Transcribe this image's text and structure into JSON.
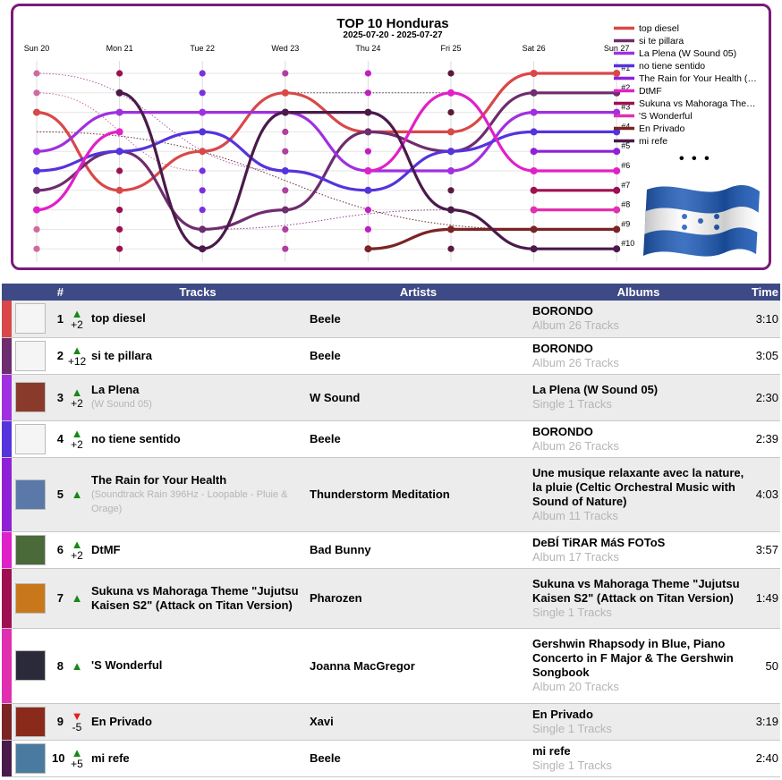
{
  "chart_data": {
    "type": "line",
    "title": "TOP 10 Honduras",
    "subtitle": "2025-07-20 - 2025-07-27",
    "x": [
      "Sun 20",
      "Mon 21",
      "Tue 22",
      "Wed 23",
      "Thu 24",
      "Fri 25",
      "Sat 26",
      "Sun 27"
    ],
    "rank_labels": [
      "#1",
      "#2",
      "#3",
      "#4",
      "#5",
      "#6",
      "#7",
      "#8",
      "#9",
      "#10"
    ],
    "ylim": [
      1,
      10
    ],
    "y_inverted": true,
    "legend_position": "right",
    "legend_more": "• • •",
    "series": [
      {
        "name": "top diesel",
        "color": "#d94848",
        "values": [
          3,
          7,
          5,
          2,
          4,
          4,
          1,
          1
        ]
      },
      {
        "name": "si te pillara",
        "color": "#6e2d6e",
        "values": [
          7,
          5,
          9,
          8,
          4,
          5,
          2,
          2
        ]
      },
      {
        "name": "La Plena (W Sound 05)",
        "color": "#a030e0",
        "values": [
          5,
          3,
          3,
          3,
          6,
          6,
          3,
          3
        ]
      },
      {
        "name": "no tiene sentido",
        "color": "#5533dd",
        "values": [
          6,
          5,
          4,
          6,
          7,
          5,
          4,
          4
        ]
      },
      {
        "name": "The Rain for Your Health (Soundtrack Rain 396Hz - Loopable - Pluie & Orage)",
        "color": "#9020d8",
        "values": [
          null,
          null,
          null,
          null,
          null,
          null,
          5,
          5
        ]
      },
      {
        "name": "DtMF",
        "color": "#e020c8",
        "values": [
          8,
          4,
          null,
          null,
          6,
          2,
          6,
          6
        ]
      },
      {
        "name": "Sukuna vs Mahoraga Theme \"Jujutsu Kaisen S2\" (Attack on Titan Version)",
        "color": "#9e1050",
        "values": [
          null,
          null,
          null,
          null,
          null,
          null,
          7,
          7
        ]
      },
      {
        "name": "'S Wonderful",
        "color": "#e030b0",
        "values": [
          null,
          null,
          null,
          null,
          null,
          null,
          8,
          8
        ]
      },
      {
        "name": "En Privado",
        "color": "#7a2424",
        "values": [
          null,
          null,
          null,
          null,
          10,
          9,
          9,
          9
        ]
      },
      {
        "name": "mi refe",
        "color": "#4a1a4a",
        "values": [
          null,
          2,
          10,
          3,
          3,
          8,
          10,
          10
        ]
      }
    ],
    "dotted_links": [
      {
        "color": "#b05ab0",
        "from": [
          0,
          1
        ],
        "to": [
          3,
          6
        ]
      },
      {
        "color": "#d06aa0",
        "from": [
          0,
          2
        ],
        "to": [
          2,
          6
        ]
      },
      {
        "color": "#6a2a2a",
        "from": [
          0,
          4
        ],
        "to": [
          6,
          9
        ]
      },
      {
        "color": "#904090",
        "from": [
          2,
          9
        ],
        "to": [
          5,
          8
        ]
      },
      {
        "color": "#5a3a5a",
        "from": [
          3,
          2
        ],
        "to": [
          5,
          2
        ]
      }
    ],
    "empty_dots": [
      {
        "day": 0,
        "color": "#d06aa0",
        "ranks": [
          1,
          2,
          9,
          10
        ]
      },
      {
        "day": 1,
        "color": "#9e1050",
        "ranks": [
          1,
          6,
          7,
          8,
          9,
          10
        ]
      },
      {
        "day": 2,
        "color": "#7a30e0",
        "ranks": [
          1,
          2,
          6,
          7,
          8
        ]
      },
      {
        "day": 3,
        "color": "#b040a0",
        "ranks": [
          1,
          4,
          5,
          7,
          9,
          10
        ]
      },
      {
        "day": 4,
        "color": "#c020c0",
        "ranks": [
          1,
          2,
          5,
          8,
          9
        ]
      },
      {
        "day": 5,
        "color": "#5a1a3a",
        "ranks": [
          1,
          3,
          7,
          10
        ]
      }
    ]
  },
  "table": {
    "headers": {
      "rank": "#",
      "tracks": "Tracks",
      "artists": "Artists",
      "albums": "Albums",
      "time": "Time"
    },
    "rows": [
      {
        "rank": "1",
        "trend": "up",
        "change": "+2",
        "title": "top diesel",
        "subtitle": "",
        "artist": "Beele",
        "album": "BORONDO",
        "album_info": "Album 26 Tracks",
        "time": "3:10",
        "color": "#d94848",
        "cover": "#f5f5f5"
      },
      {
        "rank": "2",
        "trend": "up",
        "change": "+12",
        "title": "si te pillara",
        "subtitle": "",
        "artist": "Beele",
        "album": "BORONDO",
        "album_info": "Album 26 Tracks",
        "time": "3:05",
        "color": "#6e2d6e",
        "cover": "#f5f5f5"
      },
      {
        "rank": "3",
        "trend": "up",
        "change": "+2",
        "title": "La Plena",
        "subtitle": "(W Sound 05)",
        "artist": "W Sound",
        "album": "La Plena (W Sound 05)",
        "album_info": "Single 1 Tracks",
        "time": "2:30",
        "color": "#a030e0",
        "cover": "#8a3a2a"
      },
      {
        "rank": "4",
        "trend": "up",
        "change": "+2",
        "title": "no tiene sentido",
        "subtitle": "",
        "artist": "Beele",
        "album": "BORONDO",
        "album_info": "Album 26 Tracks",
        "time": "2:39",
        "color": "#5533dd",
        "cover": "#f5f5f5"
      },
      {
        "rank": "5",
        "trend": "up",
        "change": "",
        "title": "The Rain for Your Health",
        "subtitle": "(Soundtrack Rain 396Hz - Loopable - Pluie & Orage)",
        "artist": "Thunderstorm Meditation",
        "album": "Une musique relaxante avec la nature, la pluie (Celtic Orchestral Music with Sound of Nature)",
        "album_info": "Album 11 Tracks",
        "time": "4:03",
        "color": "#9020d8",
        "cover": "#5a78a8"
      },
      {
        "rank": "6",
        "trend": "up",
        "change": "+2",
        "title": "DtMF",
        "subtitle": "",
        "artist": "Bad Bunny",
        "album": "DeBÍ TiRAR MáS FOToS",
        "album_info": "Album 17 Tracks",
        "time": "3:57",
        "color": "#e020c8",
        "cover": "#4a6a3a"
      },
      {
        "rank": "7",
        "trend": "up",
        "change": "",
        "title": "Sukuna vs Mahoraga Theme \"Jujutsu Kaisen S2\" (Attack on Titan Version)",
        "subtitle": "",
        "artist": "Pharozen",
        "album": "Sukuna vs Mahoraga Theme \"Jujutsu Kaisen S2\" (Attack on Titan Version)",
        "album_info": "Single 1 Tracks",
        "time": "1:49",
        "color": "#9e1050",
        "cover": "#c8781a"
      },
      {
        "rank": "8",
        "trend": "up",
        "change": "",
        "title": "'S Wonderful",
        "subtitle": "",
        "artist": "Joanna MacGregor",
        "album": "Gershwin Rhapsody in Blue, Piano Concerto in F Major & The Gershwin Songbook",
        "album_info": "Album 20 Tracks",
        "time": "50",
        "color": "#e030b0",
        "cover": "#2a2a3a"
      },
      {
        "rank": "9",
        "trend": "down",
        "change": "-5",
        "title": "En Privado",
        "subtitle": "",
        "artist": "Xavi",
        "album": "En Privado",
        "album_info": "Single 1 Tracks",
        "time": "3:19",
        "color": "#7a2424",
        "cover": "#8a2a1a"
      },
      {
        "rank": "10",
        "trend": "up",
        "change": "+5",
        "title": "mi refe",
        "subtitle": "",
        "artist": "Beele",
        "album": "mi refe",
        "album_info": "Single 1 Tracks",
        "time": "2:40",
        "color": "#4a1a4a",
        "cover": "#4a7aa0"
      }
    ]
  }
}
